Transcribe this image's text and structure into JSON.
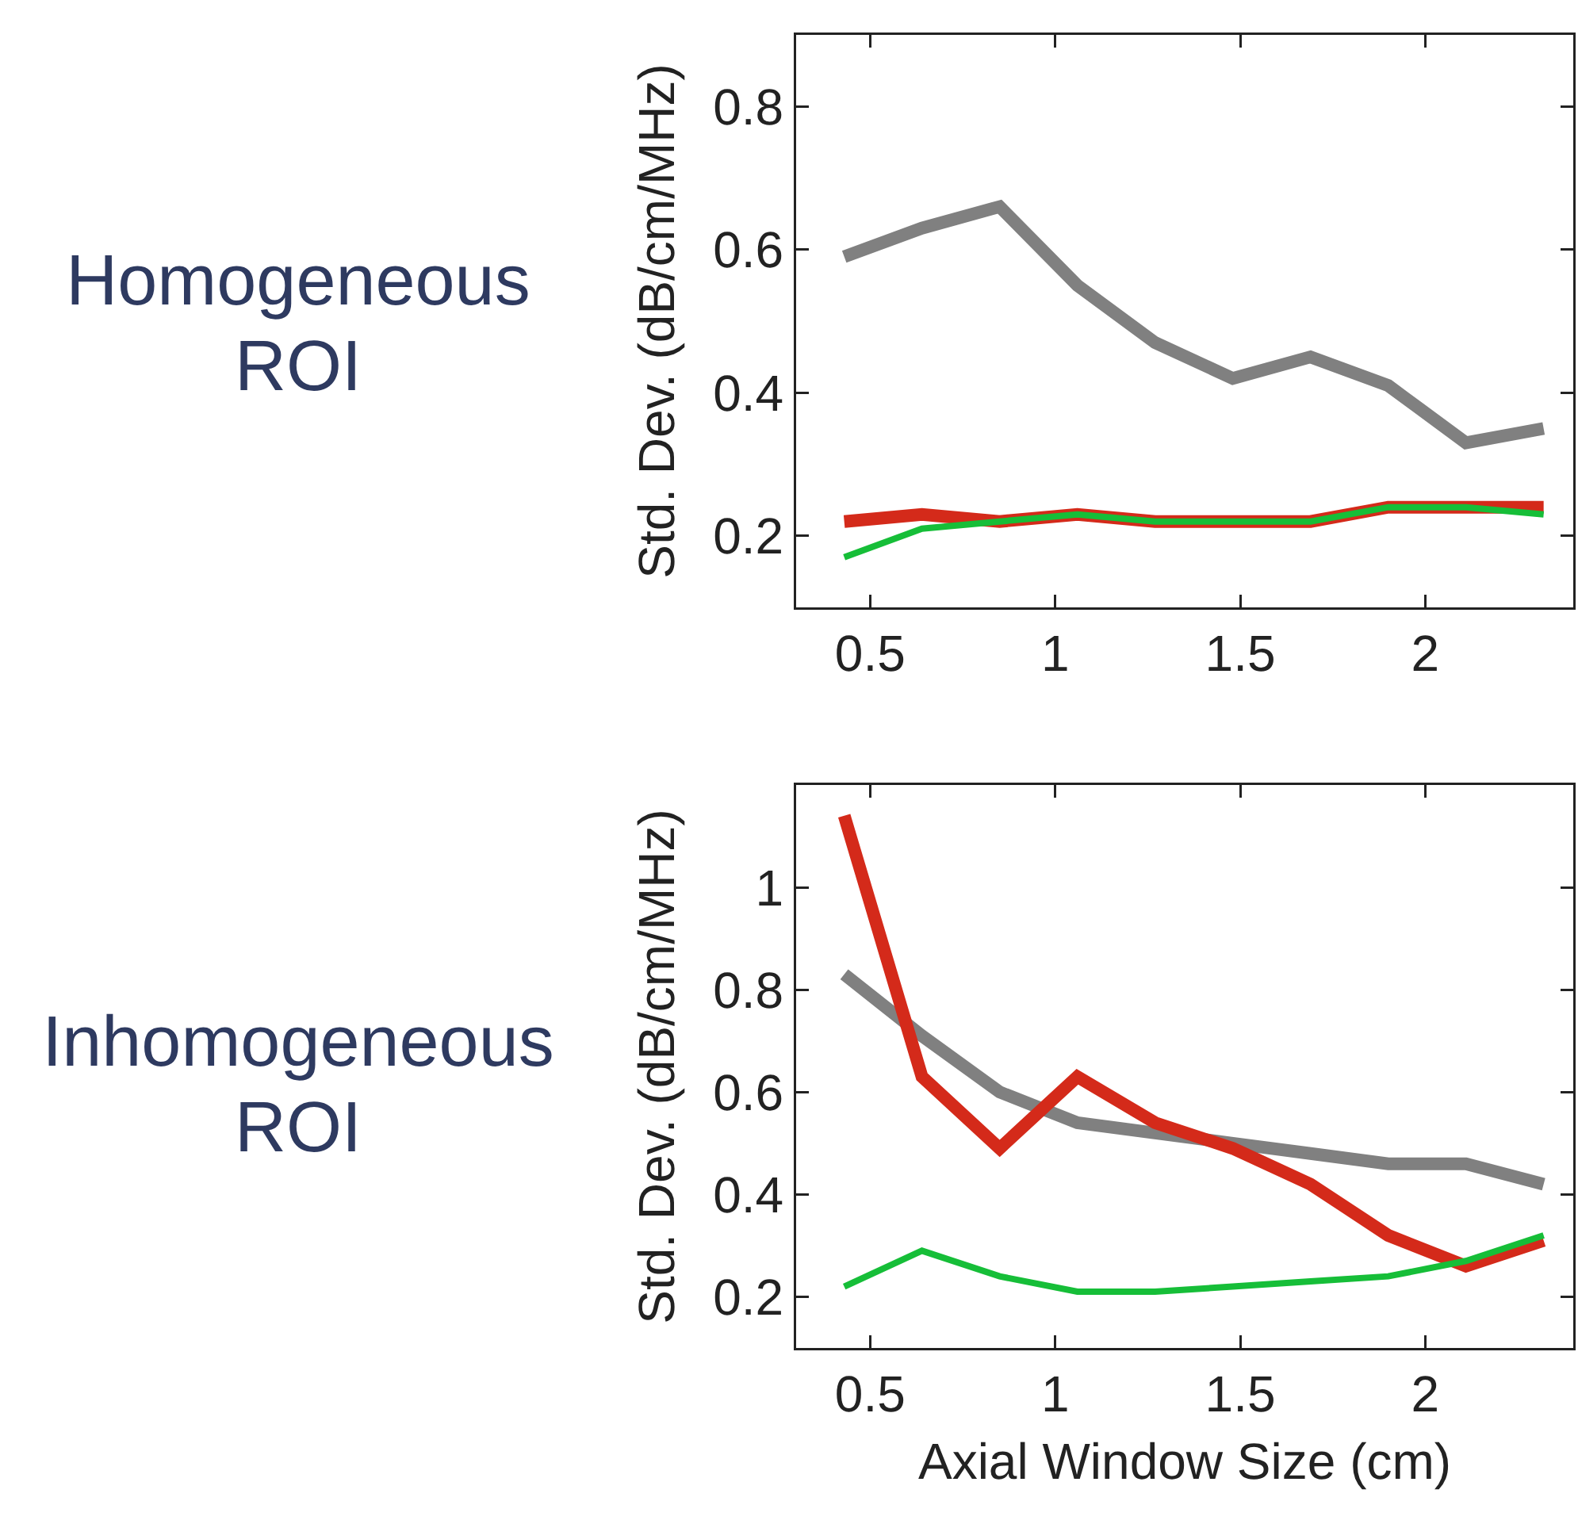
{
  "chart_data": [
    {
      "type": "line",
      "title": "Homogeneous ROI",
      "ylabel": "Std. Dev. (dB/cm/MHz)",
      "x": [
        0.43,
        0.64,
        0.85,
        1.06,
        1.27,
        1.48,
        1.69,
        1.9,
        2.11,
        2.32
      ],
      "xlim": [
        0.3,
        2.4
      ],
      "xticks": [
        0.5,
        1,
        1.5,
        2
      ],
      "ylim": [
        0.1,
        0.9
      ],
      "yticks": [
        0.2,
        0.4,
        0.6,
        0.8
      ],
      "grid": false,
      "marker": "none",
      "line_style": "solid",
      "series": [
        {
          "color": "#808080",
          "values": [
            0.59,
            0.63,
            0.66,
            0.55,
            0.47,
            0.42,
            0.45,
            0.41,
            0.33,
            0.35
          ]
        },
        {
          "color": "#d42a1a",
          "values": [
            0.22,
            0.23,
            0.22,
            0.23,
            0.22,
            0.22,
            0.22,
            0.24,
            0.24,
            0.24
          ]
        },
        {
          "color": "#16be38",
          "values": [
            0.17,
            0.21,
            0.22,
            0.23,
            0.22,
            0.22,
            0.22,
            0.24,
            0.24,
            0.23
          ]
        }
      ]
    },
    {
      "type": "line",
      "title": "Inhomogeneous ROI",
      "xlabel": "Axial Window Size (cm)",
      "ylabel": "Std. Dev. (dB/cm/MHz)",
      "x": [
        0.43,
        0.64,
        0.85,
        1.06,
        1.27,
        1.48,
        1.69,
        1.9,
        2.11,
        2.32
      ],
      "xlim": [
        0.3,
        2.4
      ],
      "xticks": [
        0.5,
        1,
        1.5,
        2
      ],
      "ylim": [
        0.1,
        1.2
      ],
      "yticks": [
        0.2,
        0.4,
        0.6,
        0.8,
        1
      ],
      "grid": false,
      "marker": "none",
      "line_style": "solid",
      "series": [
        {
          "color": "#808080",
          "values": [
            0.83,
            0.71,
            0.6,
            0.54,
            0.52,
            0.5,
            0.48,
            0.46,
            0.46,
            0.42
          ]
        },
        {
          "color": "#d42a1a",
          "values": [
            1.14,
            0.63,
            0.49,
            0.63,
            0.54,
            0.49,
            0.42,
            0.32,
            0.26,
            0.31
          ]
        },
        {
          "color": "#16be38",
          "values": [
            0.22,
            0.29,
            0.24,
            0.21,
            0.21,
            0.22,
            0.23,
            0.24,
            0.27,
            0.32
          ]
        }
      ]
    }
  ]
}
